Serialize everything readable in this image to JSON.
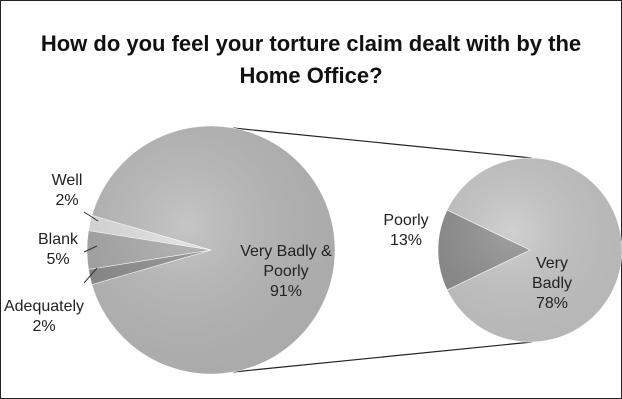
{
  "chart_data": {
    "type": "bar-of-pie",
    "title": {
      "line1": "How do you feel your torture claim dealt with by the",
      "line2": "Home Office?"
    },
    "main_pie": {
      "slices": [
        {
          "name": "Very Badly & Poorly",
          "value": 91,
          "label_name_lines": [
            "Very Badly &",
            "Poorly"
          ],
          "label_value": "91%",
          "color": "#b9b9b9"
        },
        {
          "name": "Adequately",
          "value": 2,
          "label_name_lines": [
            "Adequately"
          ],
          "label_value": "2%",
          "color": "#8a8a8a"
        },
        {
          "name": "Blank",
          "value": 5,
          "label_name_lines": [
            "Blank"
          ],
          "label_value": "5%",
          "color": "#a7a7a7"
        },
        {
          "name": "Well",
          "value": 2,
          "label_name_lines": [
            "Well"
          ],
          "label_value": "2%",
          "color": "#dedede"
        }
      ]
    },
    "secondary_pie": {
      "parent": "Very Badly & Poorly",
      "slices": [
        {
          "name": "Very Badly",
          "value": 78,
          "label_name_lines": [
            "Very",
            "Badly"
          ],
          "label_value": "78%",
          "color": "#c6c6c6"
        },
        {
          "name": "Poorly",
          "value": 13,
          "label_name_lines": [
            "Poorly"
          ],
          "label_value": "13%",
          "color": "#8c8c8c"
        }
      ]
    }
  }
}
